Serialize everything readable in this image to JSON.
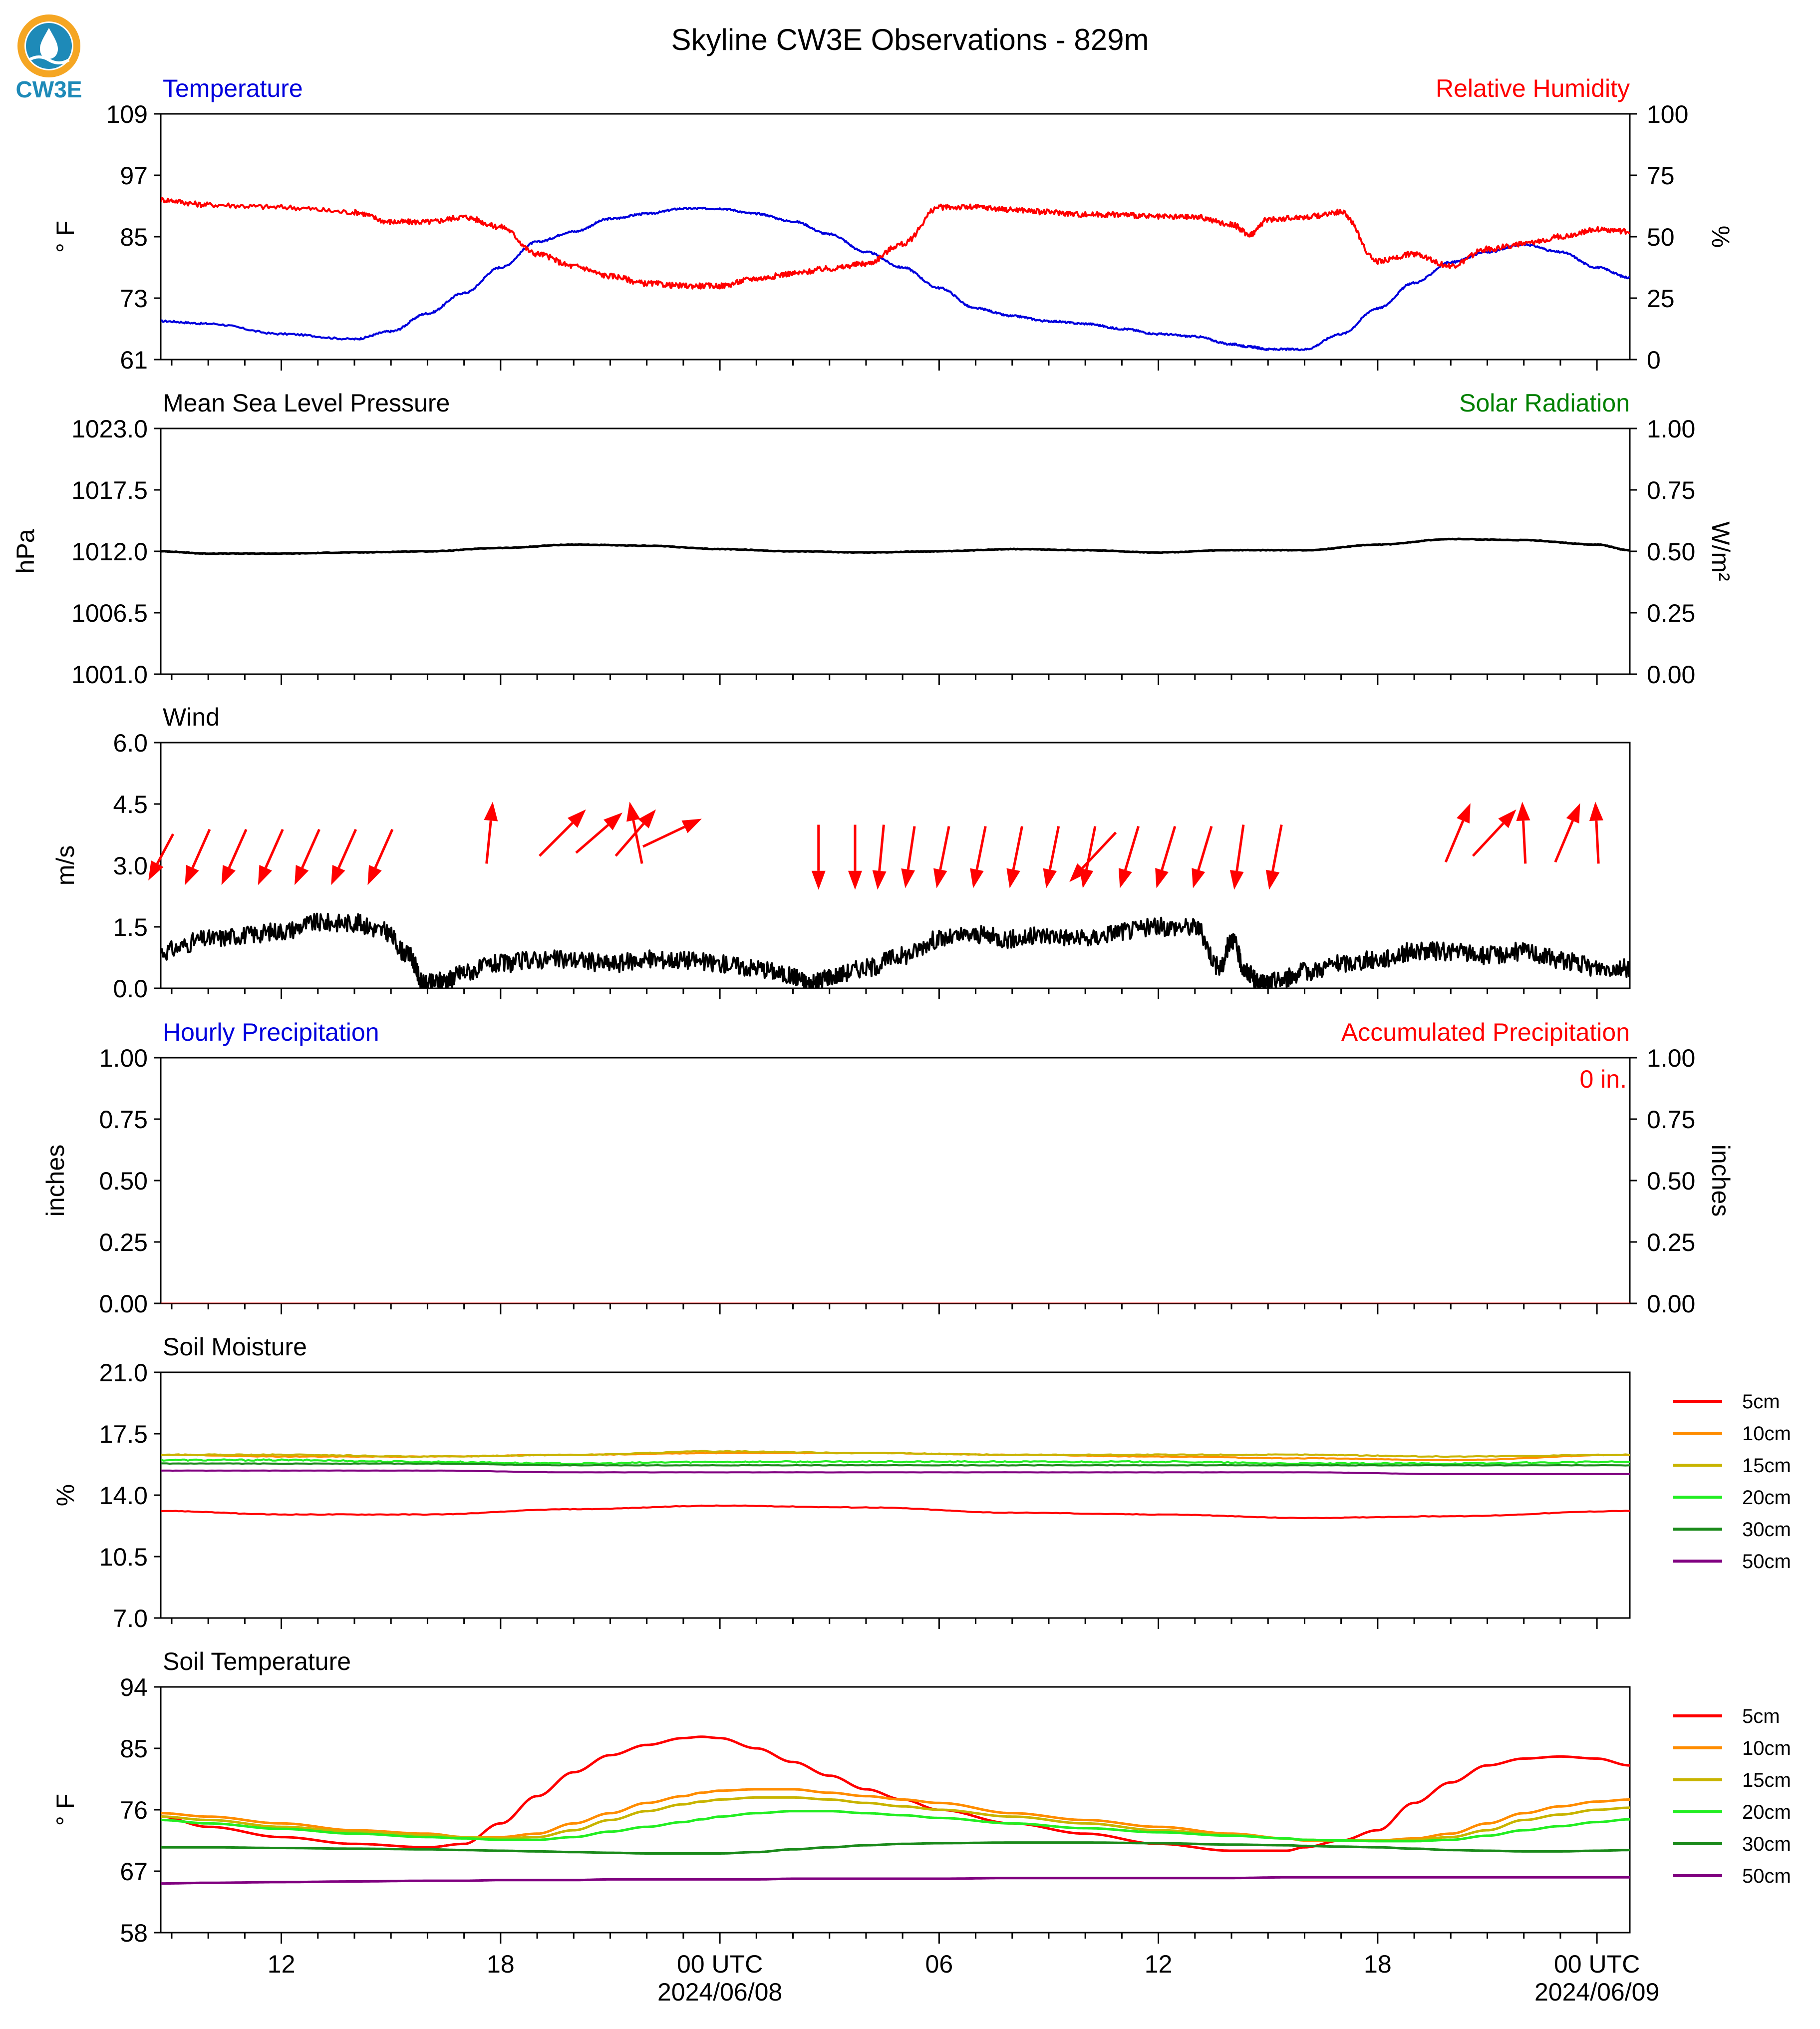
{
  "title": "Skyline CW3E Observations - 829m",
  "logo": {
    "text": "CW3E",
    "icon": "cw3e-water-drop-logo",
    "colors": {
      "ring": "#f5a623",
      "drop": "#1e8ab8",
      "text": "#1e8ab8"
    }
  },
  "x_axis": {
    "tick_labels": [
      "12",
      "18",
      "00 UTC",
      "06",
      "12",
      "18",
      "00 UTC"
    ],
    "date_labels": [
      "2024/06/08",
      "2024/06/09"
    ]
  },
  "legend_soil_moisture": {
    "entries": [
      "5cm",
      "10cm",
      "15cm",
      "20cm",
      "30cm",
      "50cm"
    ]
  },
  "legend_soil_temperature": {
    "entries": [
      "5cm",
      "10cm",
      "15cm",
      "20cm",
      "30cm",
      "50cm"
    ]
  },
  "depth_colors": {
    "5cm": "#ff0000",
    "10cm": "#ff8c00",
    "15cm": "#c8b400",
    "20cm": "#22ee22",
    "30cm": "#1a8a1a",
    "50cm": "#800080"
  },
  "chart_data": [
    {
      "type": "line",
      "panel": "temperature-rh",
      "left_title": "Temperature",
      "right_title": "Relative Humidity",
      "ylabel": "° F",
      "y2label": "%",
      "ylim": [
        61,
        109
      ],
      "y2lim": [
        0,
        100
      ],
      "yticks": [
        "109",
        "97",
        "85",
        "73",
        "61"
      ],
      "y2ticks": [
        "100",
        "75",
        "50",
        "25",
        "0"
      ],
      "x_hours": [
        8.7,
        10,
        12,
        14,
        15,
        16,
        17,
        18,
        19,
        20,
        21,
        22,
        23,
        24,
        25,
        26,
        27,
        28,
        29,
        30,
        31,
        32,
        33,
        34,
        35,
        36,
        37,
        38,
        38.5,
        39,
        40,
        41,
        42,
        43,
        44,
        45,
        46,
        47,
        48,
        48.9
      ],
      "series": [
        {
          "color": "#0000dd",
          "values": [
            68.5,
            68,
            66,
            65,
            66.5,
            70,
            74,
            79,
            84,
            86,
            88.5,
            89.5,
            90.5,
            90.5,
            89.5,
            88,
            85.5,
            82,
            79,
            75,
            71,
            69.5,
            68.5,
            68,
            67,
            66,
            65.5,
            64,
            63.5,
            63,
            63,
            66,
            71,
            76,
            80,
            82,
            83.5,
            82,
            79,
            77
          ]
        },
        {
          "color": "#ff0000",
          "values": [
            65,
            63,
            62,
            60,
            56,
            56,
            58,
            54,
            43,
            38,
            34,
            31,
            30,
            30,
            33,
            35,
            37,
            39,
            47,
            62,
            62,
            61,
            60,
            59,
            59,
            58,
            58,
            55,
            51,
            57,
            58,
            60,
            40,
            43,
            38,
            45,
            47,
            50,
            53,
            52
          ]
        }
      ]
    },
    {
      "type": "line",
      "panel": "pressure-solar",
      "left_title": "Mean Sea Level Pressure",
      "right_title": "Solar Radiation",
      "ylabel": "hPa",
      "y2label": "W/m²",
      "ylim": [
        1001.0,
        1023.0
      ],
      "y2lim": [
        0.0,
        1.0
      ],
      "yticks": [
        "1023.0",
        "1017.5",
        "1012.0",
        "1006.5",
        "1001.0"
      ],
      "y2ticks": [
        "1.00",
        "0.75",
        "0.50",
        "0.25",
        "0.00"
      ],
      "x_hours": [
        8.7,
        10,
        12,
        14,
        16,
        18,
        20,
        22,
        24,
        26,
        28,
        30,
        32,
        34,
        36,
        38,
        40,
        42,
        44,
        46,
        48,
        48.9
      ],
      "series": [
        {
          "color": "#000000",
          "values": [
            1012.0,
            1011.8,
            1011.8,
            1011.9,
            1012.0,
            1012.3,
            1012.6,
            1012.5,
            1012.2,
            1012.0,
            1011.9,
            1012.0,
            1012.2,
            1012.1,
            1011.9,
            1012.1,
            1012.1,
            1012.6,
            1013.1,
            1013.0,
            1012.6,
            1012.1
          ]
        }
      ]
    },
    {
      "type": "line",
      "panel": "wind",
      "left_title": "Wind",
      "ylabel": "m/s",
      "ylim": [
        0.0,
        6.0
      ],
      "yticks": [
        "6.0",
        "4.5",
        "3.0",
        "1.5",
        "0.0"
      ],
      "x_hours": [
        8.7,
        10,
        11,
        12,
        13,
        14,
        14.8,
        15.5,
        15.9,
        16.5,
        17,
        18,
        19,
        20,
        21,
        22,
        23,
        24,
        25,
        26,
        26.5,
        27,
        28,
        29,
        30,
        31,
        32,
        33,
        34,
        35,
        36,
        37,
        37.7,
        38,
        38.4,
        38.8,
        39.3,
        40,
        41,
        42,
        43,
        44,
        45,
        46,
        47,
        48,
        48.9
      ],
      "series": [
        {
          "color": "#000000",
          "values": [
            0.9,
            1.2,
            1.3,
            1.4,
            1.6,
            1.6,
            1.4,
            0.8,
            0.1,
            0.2,
            0.4,
            0.6,
            0.7,
            0.7,
            0.6,
            0.7,
            0.7,
            0.6,
            0.5,
            0.3,
            0.1,
            0.3,
            0.5,
            0.8,
            1.2,
            1.3,
            1.2,
            1.3,
            1.2,
            1.4,
            1.5,
            1.5,
            0.5,
            1.2,
            0.4,
            0.1,
            0.2,
            0.4,
            0.6,
            0.7,
            0.9,
            0.9,
            0.8,
            0.9,
            0.7,
            0.5,
            0.5
          ]
        }
      ],
      "arrows": [
        {
          "hour": 8.7,
          "u": -0.8,
          "v": -1.5
        },
        {
          "hour": 9.7,
          "u": -0.8,
          "v": -1.8
        },
        {
          "hour": 10.7,
          "u": -0.8,
          "v": -1.8
        },
        {
          "hour": 11.7,
          "u": -0.8,
          "v": -1.8
        },
        {
          "hour": 12.7,
          "u": -0.8,
          "v": -1.8
        },
        {
          "hour": 13.7,
          "u": -0.8,
          "v": -1.8
        },
        {
          "hour": 14.7,
          "u": -0.8,
          "v": -1.8
        },
        {
          "hour": 17.7,
          "u": 0.2,
          "v": 2.0
        },
        {
          "hour": 19.7,
          "u": 1.5,
          "v": 1.5
        },
        {
          "hour": 20.7,
          "u": 1.5,
          "v": 1.3
        },
        {
          "hour": 21.7,
          "u": -0.4,
          "v": 2.0
        },
        {
          "hour": 21.7,
          "u": 1.3,
          "v": 1.5
        },
        {
          "hour": 22.7,
          "u": 1.9,
          "v": 0.9
        },
        {
          "hour": 26.7,
          "u": 0.0,
          "v": -2.1
        },
        {
          "hour": 27.7,
          "u": 0.0,
          "v": -2.1
        },
        {
          "hour": 28.4,
          "u": -0.2,
          "v": -2.1
        },
        {
          "hour": 29.2,
          "u": -0.3,
          "v": -2.0
        },
        {
          "hour": 30.1,
          "u": -0.4,
          "v": -2.0
        },
        {
          "hour": 31.1,
          "u": -0.4,
          "v": -2.0
        },
        {
          "hour": 32.1,
          "u": -0.4,
          "v": -2.0
        },
        {
          "hour": 33.1,
          "u": -0.4,
          "v": -2.0
        },
        {
          "hour": 34.1,
          "u": -0.4,
          "v": -2.0
        },
        {
          "hour": 34.2,
          "u": -1.5,
          "v": -1.6
        },
        {
          "hour": 35.2,
          "u": -0.6,
          "v": -2.0
        },
        {
          "hour": 36.2,
          "u": -0.6,
          "v": -2.0
        },
        {
          "hour": 37.2,
          "u": -0.6,
          "v": -2.0
        },
        {
          "hour": 38.2,
          "u": -0.3,
          "v": -2.1
        },
        {
          "hour": 39.2,
          "u": -0.4,
          "v": -2.1
        },
        {
          "hour": 44.2,
          "u": 0.8,
          "v": 1.9
        },
        {
          "hour": 45.2,
          "u": 1.4,
          "v": 1.5
        },
        {
          "hour": 46.0,
          "u": -0.1,
          "v": 2.0
        },
        {
          "hour": 47.2,
          "u": 0.8,
          "v": 1.9
        },
        {
          "hour": 48.0,
          "u": -0.1,
          "v": 2.0
        }
      ]
    },
    {
      "type": "line",
      "panel": "precipitation",
      "left_title": "Hourly Precipitation",
      "right_title": "Accumulated Precipitation",
      "annotation": "0 in.",
      "ylabel": "inches",
      "y2label": "inches",
      "ylim": [
        0.0,
        1.0
      ],
      "y2lim": [
        0.0,
        1.0
      ],
      "yticks": [
        "1.00",
        "0.75",
        "0.50",
        "0.25",
        "0.00"
      ],
      "y2ticks": [
        "1.00",
        "0.75",
        "0.50",
        "0.25",
        "0.00"
      ],
      "x_hours": [
        8.7,
        48.9
      ],
      "series": [
        {
          "color": "#0000dd",
          "values": [
            0,
            0
          ]
        },
        {
          "color": "#ff0000",
          "values": [
            0,
            0
          ]
        }
      ]
    },
    {
      "type": "line",
      "panel": "soil-moisture",
      "left_title": "Soil Moisture",
      "ylabel": "%",
      "ylim": [
        7.0,
        21.0
      ],
      "yticks": [
        "21.0",
        "17.5",
        "14.0",
        "10.5",
        "7.0"
      ],
      "x_hours": [
        8.7,
        12,
        16,
        20,
        24,
        28,
        32,
        36,
        40,
        44,
        48.9
      ],
      "series": [
        {
          "name": "5cm",
          "color": "#ff0000",
          "values": [
            13.1,
            12.9,
            12.9,
            13.2,
            13.4,
            13.3,
            13.0,
            12.9,
            12.7,
            12.8,
            13.1
          ]
        },
        {
          "name": "10cm",
          "color": "#ff8c00",
          "values": [
            16.3,
            16.2,
            16.2,
            16.3,
            16.4,
            16.4,
            16.3,
            16.2,
            16.1,
            16.0,
            16.3
          ]
        },
        {
          "name": "15cm",
          "color": "#c8b400",
          "values": [
            16.3,
            16.3,
            16.2,
            16.3,
            16.5,
            16.4,
            16.3,
            16.3,
            16.3,
            16.2,
            16.3
          ]
        },
        {
          "name": "20cm",
          "color": "#22ee22",
          "values": [
            16.0,
            16.0,
            15.9,
            15.8,
            15.9,
            15.9,
            15.9,
            15.9,
            15.8,
            15.8,
            15.9
          ]
        },
        {
          "name": "30cm",
          "color": "#1a8a1a",
          "values": [
            15.8,
            15.8,
            15.8,
            15.7,
            15.7,
            15.7,
            15.7,
            15.7,
            15.7,
            15.7,
            15.7
          ]
        },
        {
          "name": "50cm",
          "color": "#800080",
          "values": [
            15.4,
            15.4,
            15.4,
            15.3,
            15.3,
            15.3,
            15.3,
            15.3,
            15.3,
            15.2,
            15.2
          ]
        }
      ]
    },
    {
      "type": "line",
      "panel": "soil-temperature",
      "left_title": "Soil Temperature",
      "ylabel": "° F",
      "ylim": [
        58,
        94
      ],
      "yticks": [
        "94",
        "85",
        "76",
        "67",
        "58"
      ],
      "x_hours": [
        8.7,
        10,
        12,
        14,
        16,
        17,
        18,
        19,
        20,
        21,
        22,
        23,
        23.5,
        24,
        25,
        26,
        27,
        28,
        29,
        30,
        32,
        34,
        36,
        38,
        39.5,
        40,
        41,
        42,
        43,
        44,
        45,
        46,
        47,
        48,
        48.9
      ],
      "series": [
        {
          "name": "5cm",
          "color": "#ff0000",
          "values": [
            75,
            73.5,
            72,
            71,
            70.5,
            71,
            74,
            78,
            81.5,
            84,
            85.5,
            86.5,
            86.7,
            86.5,
            85,
            83,
            81,
            79,
            77.5,
            76,
            74,
            72.5,
            71,
            70,
            70,
            70.5,
            71.5,
            73,
            77,
            80,
            82.5,
            83.5,
            83.8,
            83.5,
            82.5
          ]
        },
        {
          "name": "10cm",
          "color": "#ff8c00",
          "values": [
            75.5,
            75,
            74,
            73,
            72.5,
            72,
            72,
            72.5,
            74,
            75.5,
            77,
            78,
            78.5,
            78.8,
            79,
            79,
            78.5,
            78,
            77.5,
            77,
            75.5,
            74.5,
            73.5,
            72.5,
            71.8,
            71.5,
            71.5,
            71.5,
            71.8,
            72.5,
            74,
            75.5,
            76.5,
            77.2,
            77.5
          ]
        },
        {
          "name": "15cm",
          "color": "#c8b400",
          "values": [
            75,
            74.5,
            73.5,
            72.8,
            72.3,
            72,
            71.8,
            72,
            73,
            74.5,
            75.8,
            76.8,
            77.2,
            77.5,
            77.8,
            77.8,
            77.5,
            77,
            76.5,
            76,
            75,
            74,
            73,
            72.3,
            71.8,
            71.6,
            71.5,
            71.5,
            71.6,
            72,
            73,
            74.5,
            75.3,
            76,
            76.3
          ]
        },
        {
          "name": "20cm",
          "color": "#22ee22",
          "values": [
            74.5,
            74,
            73.2,
            72.5,
            72,
            71.8,
            71.6,
            71.6,
            72,
            72.8,
            73.5,
            74.2,
            74.6,
            75,
            75.5,
            75.8,
            75.8,
            75.5,
            75.2,
            74.8,
            74,
            73.3,
            72.7,
            72.2,
            71.8,
            71.6,
            71.5,
            71.4,
            71.4,
            71.6,
            72.2,
            73,
            73.6,
            74.2,
            74.6
          ]
        },
        {
          "name": "30cm",
          "color": "#1a8a1a",
          "values": [
            70.5,
            70.5,
            70.4,
            70.3,
            70.2,
            70.1,
            70,
            69.9,
            69.8,
            69.7,
            69.6,
            69.6,
            69.6,
            69.6,
            69.8,
            70.2,
            70.5,
            70.8,
            71,
            71.1,
            71.2,
            71.2,
            71.1,
            70.9,
            70.8,
            70.7,
            70.6,
            70.5,
            70.3,
            70.1,
            70,
            69.9,
            69.9,
            70,
            70.1
          ]
        },
        {
          "name": "50cm",
          "color": "#800080",
          "values": [
            65.2,
            65.3,
            65.4,
            65.5,
            65.6,
            65.6,
            65.7,
            65.7,
            65.7,
            65.8,
            65.8,
            65.8,
            65.8,
            65.8,
            65.8,
            65.9,
            65.9,
            65.9,
            65.9,
            65.9,
            66,
            66,
            66,
            66,
            66.1,
            66.1,
            66.1,
            66.1,
            66.1,
            66.1,
            66.1,
            66.1,
            66.1,
            66.1,
            66.1
          ]
        }
      ]
    }
  ]
}
